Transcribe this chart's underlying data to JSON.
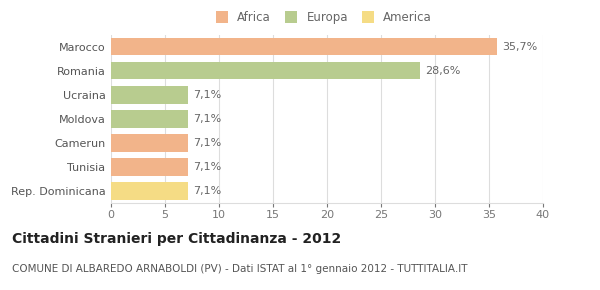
{
  "categories": [
    "Marocco",
    "Romania",
    "Ucraina",
    "Moldova",
    "Camerun",
    "Tunisia",
    "Rep. Dominicana"
  ],
  "values": [
    35.7,
    28.6,
    7.1,
    7.1,
    7.1,
    7.1,
    7.1
  ],
  "labels": [
    "35,7%",
    "28,6%",
    "7,1%",
    "7,1%",
    "7,1%",
    "7,1%",
    "7,1%"
  ],
  "colors": [
    "#f2b48a",
    "#b8cc8f",
    "#b8cc8f",
    "#b8cc8f",
    "#f2b48a",
    "#f2b48a",
    "#f5dc85"
  ],
  "legend_labels": [
    "Africa",
    "Europa",
    "America"
  ],
  "legend_colors": [
    "#f2b48a",
    "#b8cc8f",
    "#f5dc85"
  ],
  "title": "Cittadini Stranieri per Cittadinanza - 2012",
  "subtitle": "COMUNE DI ALBAREDO ARNABOLDI (PV) - Dati ISTAT al 1° gennaio 2012 - TUTTITALIA.IT",
  "xlim": [
    0,
    40
  ],
  "xticks": [
    0,
    5,
    10,
    15,
    20,
    25,
    30,
    35,
    40
  ],
  "background_color": "#ffffff",
  "grid_color": "#dddddd",
  "bar_height": 0.72,
  "label_fontsize": 8,
  "tick_fontsize": 8,
  "title_fontsize": 10,
  "subtitle_fontsize": 7.5
}
